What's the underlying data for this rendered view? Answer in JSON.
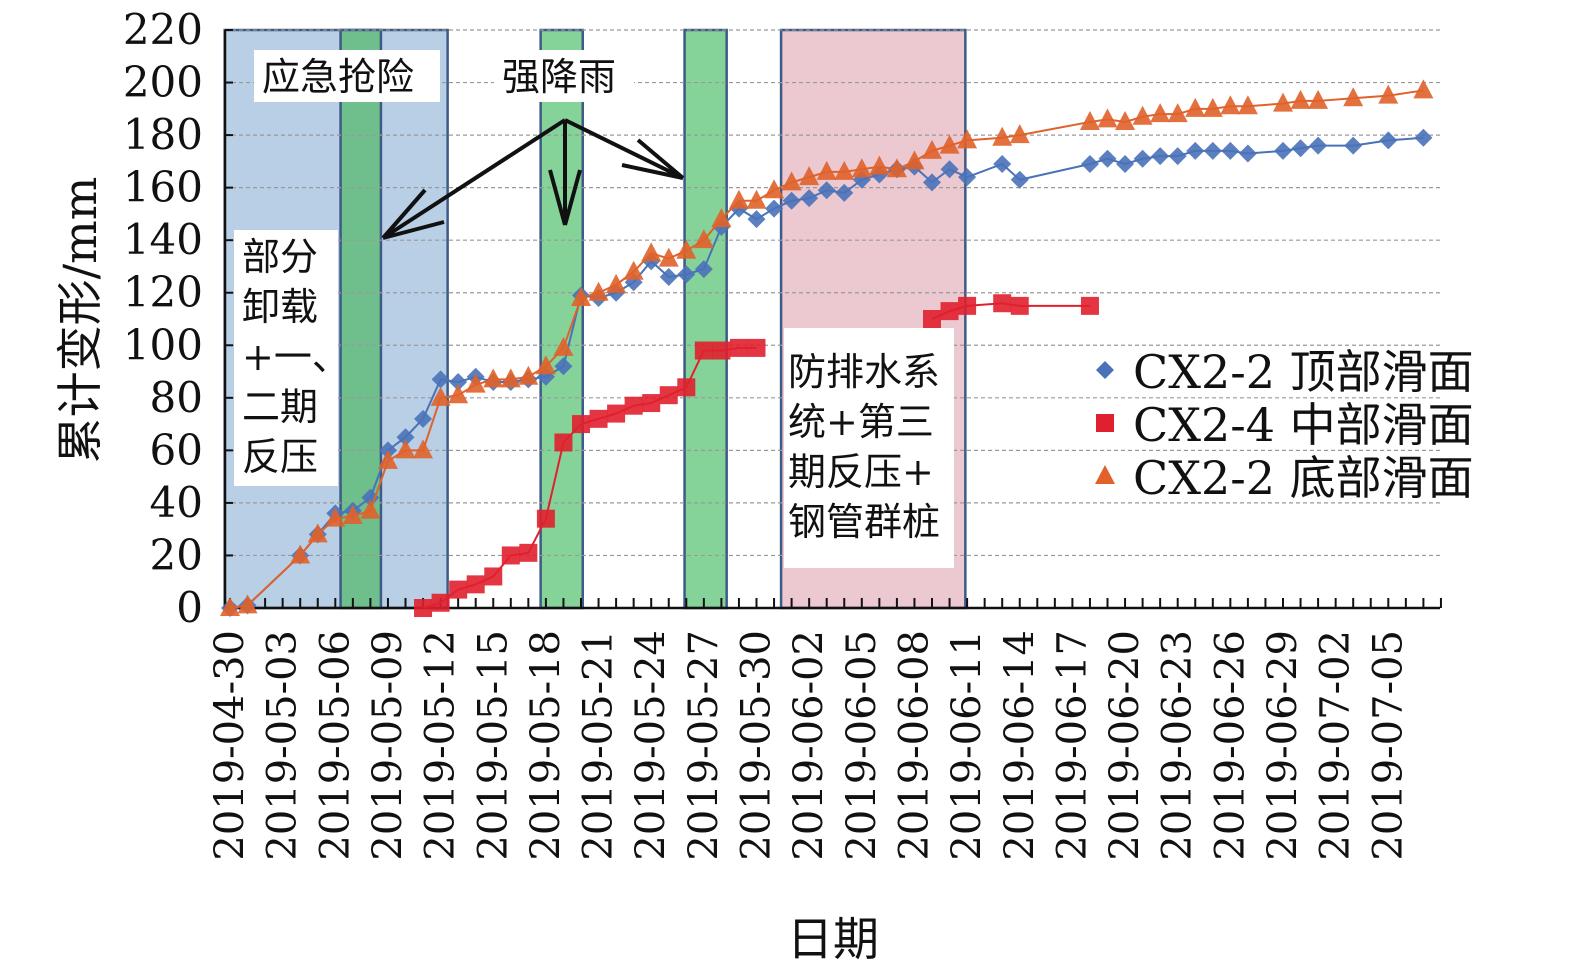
{
  "chart_data": {
    "type": "line",
    "title": "",
    "xlabel": "日期",
    "ylabel": "累计变形/mm",
    "x_start_date": "2019-04-30",
    "x_unit": "days since 2019-04-30",
    "xlim": [
      -0.3,
      69
    ],
    "ylim": [
      0,
      220
    ],
    "y_ticks": [
      0,
      20,
      40,
      60,
      80,
      100,
      120,
      140,
      160,
      180,
      200,
      220
    ],
    "x_tick_labels": [
      "2019-04-30",
      "2019-05-03",
      "2019-05-06",
      "2019-05-09",
      "2019-05-12",
      "2019-05-15",
      "2019-05-18",
      "2019-05-21",
      "2019-05-24",
      "2019-05-27",
      "2019-05-30",
      "2019-06-02",
      "2019-06-05",
      "2019-06-08",
      "2019-06-11",
      "2019-06-14",
      "2019-06-17",
      "2019-06-20",
      "2019-06-23",
      "2019-06-26",
      "2019-06-29",
      "2019-07-02",
      "2019-07-05"
    ],
    "grid": "horizontal dashed",
    "legend_position": "right",
    "series": [
      {
        "name": "CX2-2 顶部滑面",
        "color": "#4a72b8",
        "marker": "diamond",
        "x": [
          0,
          1,
          4,
          5,
          6,
          7,
          8,
          9,
          10,
          11,
          12,
          13,
          14,
          15,
          16,
          17,
          18,
          19,
          20,
          21,
          22,
          23,
          24,
          25,
          26,
          27,
          28,
          29,
          30,
          31,
          32,
          33,
          34,
          35,
          36,
          37,
          38,
          39,
          40,
          41,
          42,
          44,
          45,
          49,
          50,
          51,
          52,
          53,
          54,
          55,
          56,
          57,
          58,
          60,
          61,
          62,
          64,
          66,
          68
        ],
        "y": [
          0,
          1,
          20,
          28,
          36,
          37,
          42,
          60,
          65,
          72,
          87,
          86,
          88,
          86,
          86,
          87,
          88,
          92,
          119,
          118,
          120,
          124,
          132,
          126,
          127,
          129,
          145,
          152,
          148,
          152,
          155,
          156,
          159,
          158,
          163,
          165,
          167,
          168,
          162,
          167,
          164,
          169,
          163,
          169,
          171,
          169,
          171,
          172,
          172,
          174,
          174,
          174,
          173,
          174,
          175,
          176,
          176,
          178,
          179
        ]
      },
      {
        "name": "CX2-4 中部滑面",
        "color": "#e0202e",
        "marker": "square",
        "x": [
          11,
          12,
          13,
          14,
          15,
          16,
          17,
          18,
          19,
          20,
          21,
          22,
          23,
          24,
          25,
          26,
          27,
          28,
          29,
          30,
          40,
          41,
          42,
          44,
          45,
          49
        ],
        "y": [
          0,
          2,
          7,
          9,
          12,
          20,
          21,
          34,
          63,
          70,
          72,
          74,
          77,
          78,
          81,
          84,
          98,
          98,
          99,
          99,
          110,
          113,
          115,
          116,
          115,
          115
        ]
      },
      {
        "name": "CX2-2 底部滑面",
        "color": "#e0622a",
        "marker": "triangle",
        "x": [
          0,
          1,
          4,
          5,
          6,
          7,
          8,
          9,
          10,
          11,
          12,
          13,
          14,
          15,
          16,
          17,
          18,
          19,
          20,
          21,
          22,
          23,
          24,
          25,
          26,
          27,
          28,
          29,
          30,
          31,
          32,
          33,
          34,
          35,
          36,
          37,
          38,
          39,
          40,
          41,
          42,
          44,
          45,
          49,
          50,
          51,
          52,
          53,
          54,
          55,
          56,
          57,
          58,
          60,
          61,
          62,
          64,
          66,
          68
        ],
        "y": [
          0,
          1,
          20,
          28,
          34,
          35,
          37,
          56,
          60,
          60,
          80,
          81,
          85,
          87,
          87,
          88,
          92,
          99,
          118,
          120,
          123,
          128,
          135,
          133,
          136,
          140,
          148,
          155,
          155,
          159,
          162,
          164,
          166,
          166,
          167,
          168,
          167,
          170,
          174,
          176,
          178,
          179,
          180,
          185,
          186,
          185,
          187,
          188,
          188,
          190,
          190,
          191,
          191,
          192,
          193,
          193,
          194,
          195,
          197
        ]
      }
    ],
    "regions": [
      {
        "label": "应急抢险",
        "from": -0.3,
        "to": 12.4,
        "color": "#b9cfe6"
      },
      {
        "label": "强降雨",
        "from": 6.3,
        "to": 8.6,
        "color": "#6fbf8c"
      },
      {
        "label": "强降雨",
        "from": 17.7,
        "to": 20.1,
        "color": "#86d39a"
      },
      {
        "label": "强降雨",
        "from": 25.9,
        "to": 28.3,
        "color": "#86d39a"
      },
      {
        "label": "防排水系统+第三期反压+钢管群桩",
        "from": 31.4,
        "to": 41.9,
        "color": "#ecc8d0"
      }
    ],
    "annotations": {
      "emergency": "应急抢险",
      "rain": "强降雨",
      "unload_lines": [
        "部分",
        "卸载",
        "+一、",
        "二期",
        "反压"
      ],
      "drainage_lines": [
        "防排水系",
        "统+第三",
        "期反压+",
        "钢管群桩"
      ]
    }
  }
}
